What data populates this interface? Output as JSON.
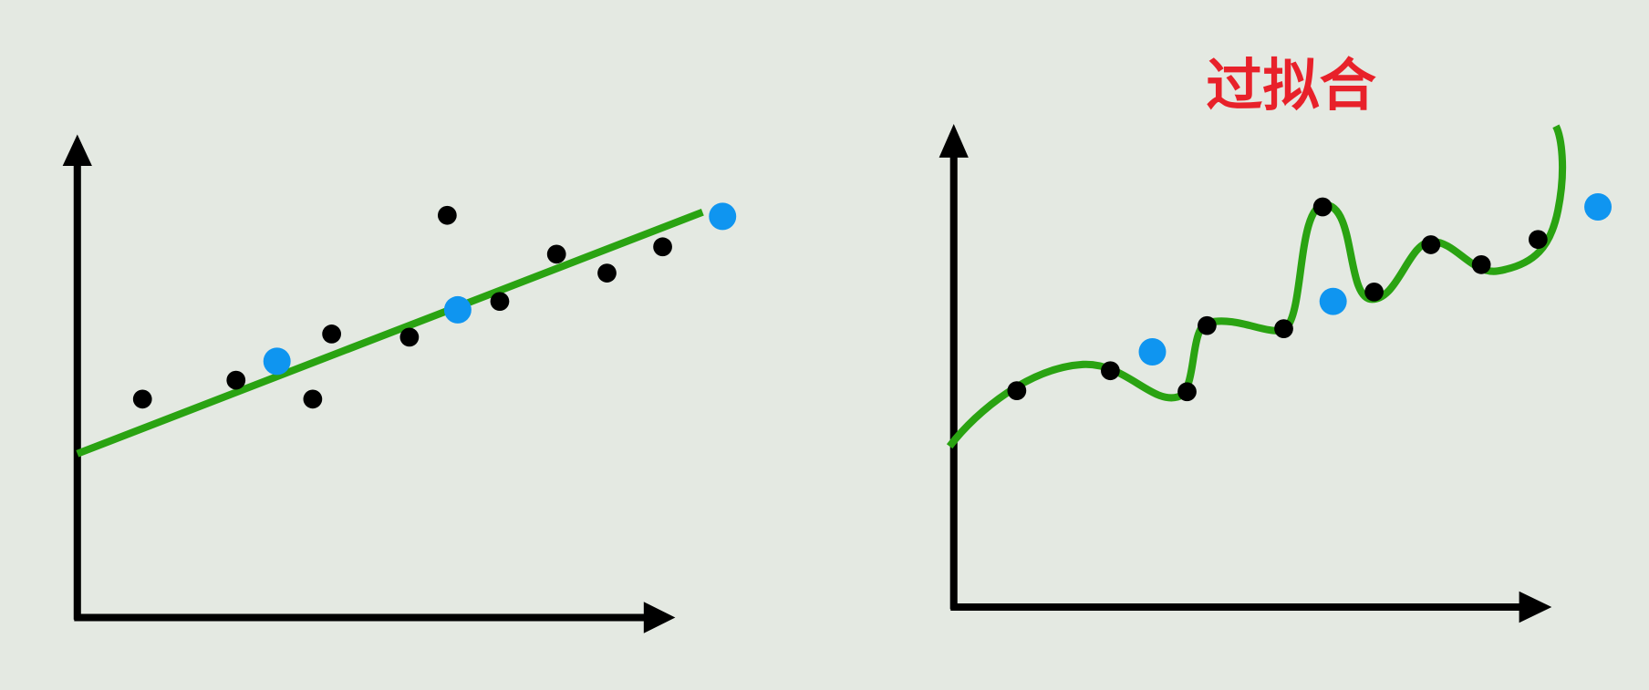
{
  "title": "过拟合"
}
